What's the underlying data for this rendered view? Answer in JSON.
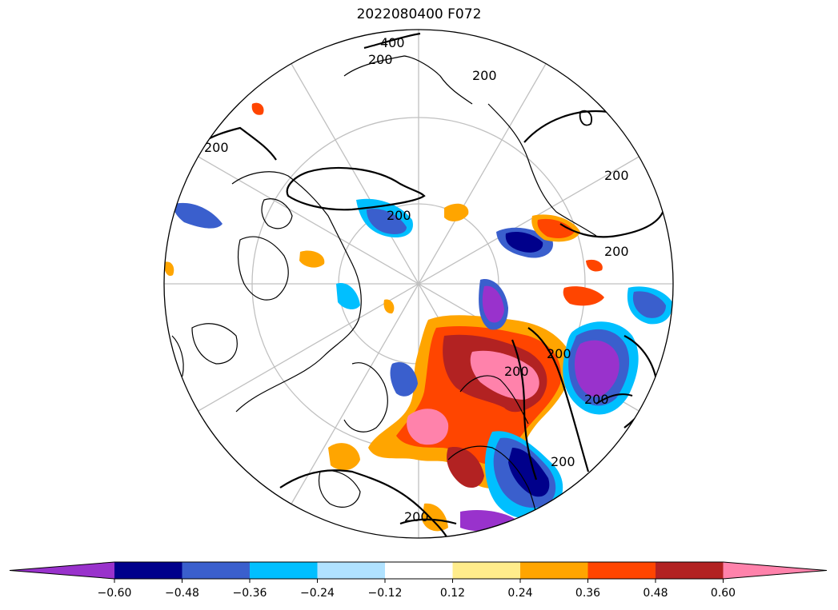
{
  "title": "2022080400 F072",
  "contour_labels": [
    "400",
    "200",
    "200",
    "200",
    "200",
    "200",
    "200",
    "200",
    "200",
    "200",
    "200",
    "200"
  ],
  "colorbar": {
    "colors": [
      "#9932CC",
      "#00008B",
      "#3A5FCD",
      "#00BFFF",
      "#B0E2FF",
      "#FFFFFF",
      "#FFEC8B",
      "#FFA500",
      "#FF4500",
      "#B22222",
      "#FF82AB"
    ],
    "tick_labels": [
      "−0.60",
      "−0.48",
      "−0.36",
      "−0.24",
      "−0.12",
      "0.12",
      "0.24",
      "0.36",
      "0.48",
      "0.60"
    ]
  }
}
